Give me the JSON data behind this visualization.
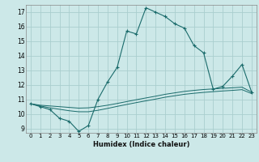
{
  "title": "",
  "xlabel": "Humidex (Indice chaleur)",
  "bg_color": "#cce8e8",
  "grid_color": "#aacece",
  "line_color": "#1a6b6b",
  "xlim": [
    -0.5,
    23.5
  ],
  "ylim": [
    8.7,
    17.5
  ],
  "yticks": [
    9,
    10,
    11,
    12,
    13,
    14,
    15,
    16,
    17
  ],
  "xticks": [
    0,
    1,
    2,
    3,
    4,
    5,
    6,
    7,
    8,
    9,
    10,
    11,
    12,
    13,
    14,
    15,
    16,
    17,
    18,
    19,
    20,
    21,
    22,
    23
  ],
  "series1_x": [
    0,
    1,
    2,
    3,
    4,
    5,
    6,
    7,
    8,
    9,
    10,
    11,
    12,
    13,
    14,
    15,
    16,
    17,
    18,
    19,
    20,
    21,
    22,
    23
  ],
  "series1_y": [
    10.7,
    10.5,
    10.3,
    9.7,
    9.5,
    8.8,
    9.2,
    11.0,
    12.2,
    13.2,
    15.7,
    15.5,
    17.3,
    17.0,
    16.7,
    16.2,
    15.9,
    14.7,
    14.2,
    11.7,
    11.9,
    12.6,
    13.4,
    11.5
  ],
  "series2_x": [
    0,
    1,
    2,
    3,
    4,
    5,
    6,
    7,
    8,
    9,
    10,
    11,
    12,
    13,
    14,
    15,
    16,
    17,
    18,
    19,
    20,
    21,
    22,
    23
  ],
  "series2_y": [
    10.7,
    10.6,
    10.55,
    10.5,
    10.45,
    10.4,
    10.42,
    10.5,
    10.6,
    10.72,
    10.85,
    10.98,
    11.1,
    11.22,
    11.35,
    11.45,
    11.55,
    11.62,
    11.68,
    11.72,
    11.76,
    11.8,
    11.84,
    11.5
  ],
  "series3_x": [
    0,
    1,
    2,
    3,
    4,
    5,
    6,
    7,
    8,
    9,
    10,
    11,
    12,
    13,
    14,
    15,
    16,
    17,
    18,
    19,
    20,
    21,
    22,
    23
  ],
  "series3_y": [
    10.7,
    10.55,
    10.42,
    10.32,
    10.22,
    10.15,
    10.15,
    10.25,
    10.38,
    10.52,
    10.65,
    10.78,
    10.9,
    11.02,
    11.15,
    11.25,
    11.35,
    11.42,
    11.48,
    11.53,
    11.58,
    11.62,
    11.67,
    11.4
  ]
}
